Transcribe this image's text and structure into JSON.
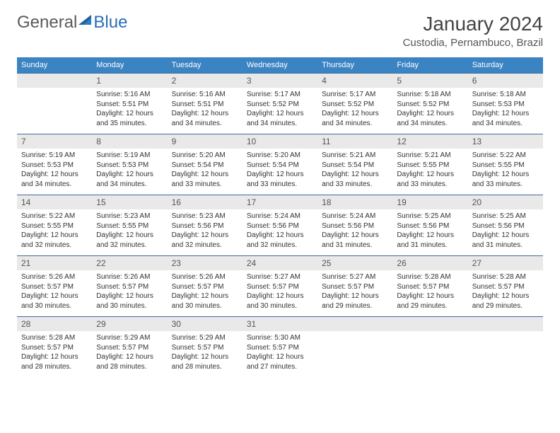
{
  "logo": {
    "part1": "General",
    "part2": "Blue"
  },
  "title": "January 2024",
  "location": "Custodia, Pernambuco, Brazil",
  "day_header_bg": "#3b84c4",
  "day_header_fg": "#ffffff",
  "daynum_bg": "#e9e9e9",
  "border_color": "#3b6e9e",
  "weekday_names": [
    "Sunday",
    "Monday",
    "Tuesday",
    "Wednesday",
    "Thursday",
    "Friday",
    "Saturday"
  ],
  "weeks": [
    [
      {
        "n": "",
        "body": ""
      },
      {
        "n": "1",
        "body": "Sunrise: 5:16 AM\nSunset: 5:51 PM\nDaylight: 12 hours and 35 minutes."
      },
      {
        "n": "2",
        "body": "Sunrise: 5:16 AM\nSunset: 5:51 PM\nDaylight: 12 hours and 34 minutes."
      },
      {
        "n": "3",
        "body": "Sunrise: 5:17 AM\nSunset: 5:52 PM\nDaylight: 12 hours and 34 minutes."
      },
      {
        "n": "4",
        "body": "Sunrise: 5:17 AM\nSunset: 5:52 PM\nDaylight: 12 hours and 34 minutes."
      },
      {
        "n": "5",
        "body": "Sunrise: 5:18 AM\nSunset: 5:52 PM\nDaylight: 12 hours and 34 minutes."
      },
      {
        "n": "6",
        "body": "Sunrise: 5:18 AM\nSunset: 5:53 PM\nDaylight: 12 hours and 34 minutes."
      }
    ],
    [
      {
        "n": "7",
        "body": "Sunrise: 5:19 AM\nSunset: 5:53 PM\nDaylight: 12 hours and 34 minutes."
      },
      {
        "n": "8",
        "body": "Sunrise: 5:19 AM\nSunset: 5:53 PM\nDaylight: 12 hours and 34 minutes."
      },
      {
        "n": "9",
        "body": "Sunrise: 5:20 AM\nSunset: 5:54 PM\nDaylight: 12 hours and 33 minutes."
      },
      {
        "n": "10",
        "body": "Sunrise: 5:20 AM\nSunset: 5:54 PM\nDaylight: 12 hours and 33 minutes."
      },
      {
        "n": "11",
        "body": "Sunrise: 5:21 AM\nSunset: 5:54 PM\nDaylight: 12 hours and 33 minutes."
      },
      {
        "n": "12",
        "body": "Sunrise: 5:21 AM\nSunset: 5:55 PM\nDaylight: 12 hours and 33 minutes."
      },
      {
        "n": "13",
        "body": "Sunrise: 5:22 AM\nSunset: 5:55 PM\nDaylight: 12 hours and 33 minutes."
      }
    ],
    [
      {
        "n": "14",
        "body": "Sunrise: 5:22 AM\nSunset: 5:55 PM\nDaylight: 12 hours and 32 minutes."
      },
      {
        "n": "15",
        "body": "Sunrise: 5:23 AM\nSunset: 5:55 PM\nDaylight: 12 hours and 32 minutes."
      },
      {
        "n": "16",
        "body": "Sunrise: 5:23 AM\nSunset: 5:56 PM\nDaylight: 12 hours and 32 minutes."
      },
      {
        "n": "17",
        "body": "Sunrise: 5:24 AM\nSunset: 5:56 PM\nDaylight: 12 hours and 32 minutes."
      },
      {
        "n": "18",
        "body": "Sunrise: 5:24 AM\nSunset: 5:56 PM\nDaylight: 12 hours and 31 minutes."
      },
      {
        "n": "19",
        "body": "Sunrise: 5:25 AM\nSunset: 5:56 PM\nDaylight: 12 hours and 31 minutes."
      },
      {
        "n": "20",
        "body": "Sunrise: 5:25 AM\nSunset: 5:56 PM\nDaylight: 12 hours and 31 minutes."
      }
    ],
    [
      {
        "n": "21",
        "body": "Sunrise: 5:26 AM\nSunset: 5:57 PM\nDaylight: 12 hours and 30 minutes."
      },
      {
        "n": "22",
        "body": "Sunrise: 5:26 AM\nSunset: 5:57 PM\nDaylight: 12 hours and 30 minutes."
      },
      {
        "n": "23",
        "body": "Sunrise: 5:26 AM\nSunset: 5:57 PM\nDaylight: 12 hours and 30 minutes."
      },
      {
        "n": "24",
        "body": "Sunrise: 5:27 AM\nSunset: 5:57 PM\nDaylight: 12 hours and 30 minutes."
      },
      {
        "n": "25",
        "body": "Sunrise: 5:27 AM\nSunset: 5:57 PM\nDaylight: 12 hours and 29 minutes."
      },
      {
        "n": "26",
        "body": "Sunrise: 5:28 AM\nSunset: 5:57 PM\nDaylight: 12 hours and 29 minutes."
      },
      {
        "n": "27",
        "body": "Sunrise: 5:28 AM\nSunset: 5:57 PM\nDaylight: 12 hours and 29 minutes."
      }
    ],
    [
      {
        "n": "28",
        "body": "Sunrise: 5:28 AM\nSunset: 5:57 PM\nDaylight: 12 hours and 28 minutes."
      },
      {
        "n": "29",
        "body": "Sunrise: 5:29 AM\nSunset: 5:57 PM\nDaylight: 12 hours and 28 minutes."
      },
      {
        "n": "30",
        "body": "Sunrise: 5:29 AM\nSunset: 5:57 PM\nDaylight: 12 hours and 28 minutes."
      },
      {
        "n": "31",
        "body": "Sunrise: 5:30 AM\nSunset: 5:57 PM\nDaylight: 12 hours and 27 minutes."
      },
      {
        "n": "",
        "body": ""
      },
      {
        "n": "",
        "body": ""
      },
      {
        "n": "",
        "body": ""
      }
    ]
  ]
}
